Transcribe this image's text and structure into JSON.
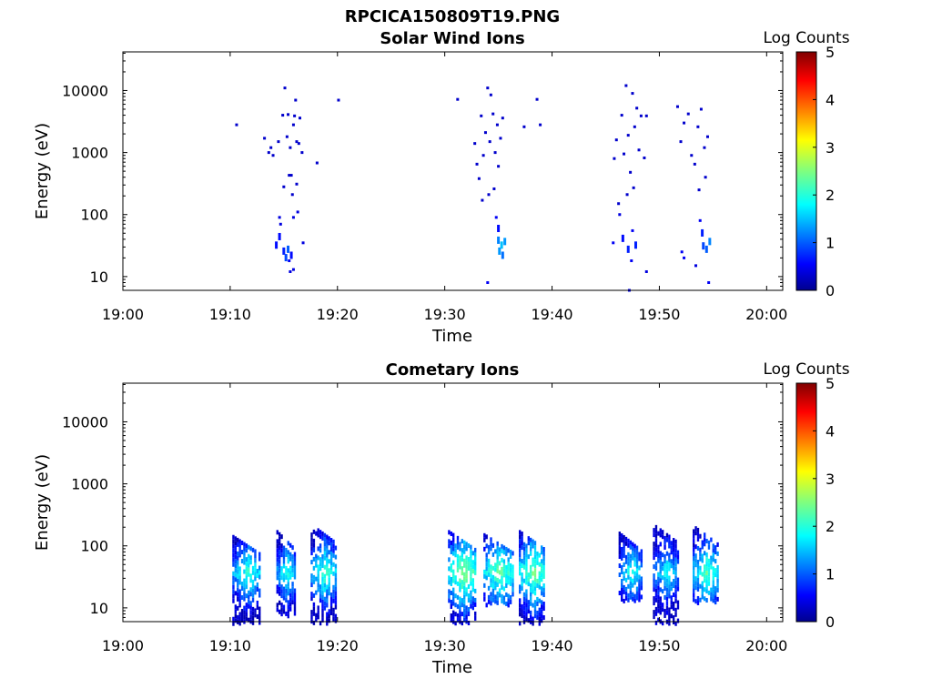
{
  "figure_title": "RPCICA150809T19.PNG",
  "chart_data": [
    {
      "type": "heatmap",
      "title": "Solar Wind Ions",
      "xlabel": "Time",
      "ylabel": "Energy (eV)",
      "x_ticks": [
        "19:00",
        "19:10",
        "19:20",
        "19:30",
        "19:40",
        "19:50",
        "20:00"
      ],
      "x_range_minutes": [
        0,
        61.5
      ],
      "y_scale": "log",
      "y_ticks": [
        "10",
        "100",
        "1000",
        "10000"
      ],
      "ylim": [
        6,
        42000
      ],
      "colorbar": {
        "label": "Log Counts",
        "ticks": [
          "0",
          "1",
          "2",
          "3",
          "4",
          "5"
        ],
        "range": [
          0,
          5
        ],
        "colormap": "jet"
      },
      "grid": false,
      "points": [
        {
          "t": 10.6,
          "e": 2800,
          "v": 0.3
        },
        {
          "t": 13.2,
          "e": 1700,
          "v": 0.3
        },
        {
          "t": 13.6,
          "e": 1000,
          "v": 0.3
        },
        {
          "t": 13.8,
          "e": 1200,
          "v": 0.3
        },
        {
          "t": 14.0,
          "e": 900,
          "v": 0.3
        },
        {
          "t": 14.5,
          "e": 1500,
          "v": 0.3
        },
        {
          "t": 14.9,
          "e": 4000,
          "v": 0.3
        },
        {
          "t": 15.1,
          "e": 11000,
          "v": 0.3
        },
        {
          "t": 15.3,
          "e": 1800,
          "v": 0.3
        },
        {
          "t": 15.4,
          "e": 4100,
          "v": 0.3
        },
        {
          "t": 15.6,
          "e": 1200,
          "v": 0.3
        },
        {
          "t": 15.7,
          "e": 430,
          "v": 0.3
        },
        {
          "t": 15.9,
          "e": 2800,
          "v": 0.3
        },
        {
          "t": 16.0,
          "e": 3900,
          "v": 0.3
        },
        {
          "t": 16.1,
          "e": 7000,
          "v": 0.3
        },
        {
          "t": 16.2,
          "e": 1500,
          "v": 0.3
        },
        {
          "t": 16.4,
          "e": 1400,
          "v": 0.3
        },
        {
          "t": 16.5,
          "e": 3600,
          "v": 0.3
        },
        {
          "t": 16.7,
          "e": 1000,
          "v": 0.3
        },
        {
          "t": 15.0,
          "e": 280,
          "v": 0.3
        },
        {
          "t": 15.5,
          "e": 430,
          "v": 0.3
        },
        {
          "t": 15.8,
          "e": 210,
          "v": 0.3
        },
        {
          "t": 16.2,
          "e": 310,
          "v": 0.3
        },
        {
          "t": 14.6,
          "e": 90,
          "v": 0.4
        },
        {
          "t": 14.7,
          "e": 70,
          "v": 0.4
        },
        {
          "t": 15.9,
          "e": 90,
          "v": 0.4
        },
        {
          "t": 16.3,
          "e": 110,
          "v": 0.4
        },
        {
          "t": 18.1,
          "e": 680,
          "v": 0.3
        },
        {
          "t": 20.1,
          "e": 7000,
          "v": 0.3
        },
        {
          "t": 14.3,
          "e": 35,
          "v": 0.6
        },
        {
          "t": 14.6,
          "e": 48,
          "v": 0.6
        },
        {
          "t": 15.0,
          "e": 28,
          "v": 0.7
        },
        {
          "t": 15.2,
          "e": 22,
          "v": 0.9
        },
        {
          "t": 15.4,
          "e": 30,
          "v": 1.0
        },
        {
          "t": 15.5,
          "e": 18,
          "v": 0.5
        },
        {
          "t": 15.7,
          "e": 24,
          "v": 0.6
        },
        {
          "t": 15.9,
          "e": 13,
          "v": 0.4
        },
        {
          "t": 15.6,
          "e": 12,
          "v": 0.4
        },
        {
          "t": 16.8,
          "e": 35,
          "v": 0.4
        },
        {
          "t": 31.2,
          "e": 7200,
          "v": 0.3
        },
        {
          "t": 32.8,
          "e": 1400,
          "v": 0.3
        },
        {
          "t": 33.0,
          "e": 650,
          "v": 0.3
        },
        {
          "t": 33.2,
          "e": 380,
          "v": 0.3
        },
        {
          "t": 33.4,
          "e": 3900,
          "v": 0.3
        },
        {
          "t": 33.6,
          "e": 900,
          "v": 0.3
        },
        {
          "t": 33.8,
          "e": 2100,
          "v": 0.3
        },
        {
          "t": 34.0,
          "e": 11000,
          "v": 0.3
        },
        {
          "t": 34.2,
          "e": 1500,
          "v": 0.3
        },
        {
          "t": 34.3,
          "e": 8500,
          "v": 0.3
        },
        {
          "t": 34.5,
          "e": 4200,
          "v": 0.3
        },
        {
          "t": 34.7,
          "e": 1000,
          "v": 0.3
        },
        {
          "t": 34.9,
          "e": 2800,
          "v": 0.3
        },
        {
          "t": 35.0,
          "e": 600,
          "v": 0.3
        },
        {
          "t": 35.2,
          "e": 1700,
          "v": 0.3
        },
        {
          "t": 35.4,
          "e": 3600,
          "v": 0.3
        },
        {
          "t": 33.5,
          "e": 170,
          "v": 0.3
        },
        {
          "t": 34.1,
          "e": 210,
          "v": 0.3
        },
        {
          "t": 34.6,
          "e": 260,
          "v": 0.3
        },
        {
          "t": 37.4,
          "e": 2600,
          "v": 0.3
        },
        {
          "t": 38.6,
          "e": 7200,
          "v": 0.3
        },
        {
          "t": 38.9,
          "e": 2800,
          "v": 0.3
        },
        {
          "t": 34.8,
          "e": 90,
          "v": 0.5
        },
        {
          "t": 35.0,
          "e": 65,
          "v": 0.6
        },
        {
          "t": 35.0,
          "e": 42,
          "v": 1.2
        },
        {
          "t": 35.3,
          "e": 35,
          "v": 1.5
        },
        {
          "t": 35.1,
          "e": 28,
          "v": 1.3
        },
        {
          "t": 35.4,
          "e": 24,
          "v": 1.1
        },
        {
          "t": 35.6,
          "e": 40,
          "v": 1.3
        },
        {
          "t": 34.0,
          "e": 8,
          "v": 0.5
        },
        {
          "t": 45.8,
          "e": 800,
          "v": 0.3
        },
        {
          "t": 46.0,
          "e": 1600,
          "v": 0.3
        },
        {
          "t": 46.2,
          "e": 150,
          "v": 0.3
        },
        {
          "t": 46.5,
          "e": 4000,
          "v": 0.3
        },
        {
          "t": 46.7,
          "e": 950,
          "v": 0.3
        },
        {
          "t": 46.9,
          "e": 12000,
          "v": 0.3
        },
        {
          "t": 47.1,
          "e": 1900,
          "v": 0.3
        },
        {
          "t": 47.3,
          "e": 480,
          "v": 0.3
        },
        {
          "t": 47.5,
          "e": 9000,
          "v": 0.3
        },
        {
          "t": 47.7,
          "e": 2600,
          "v": 0.3
        },
        {
          "t": 47.9,
          "e": 5200,
          "v": 0.3
        },
        {
          "t": 48.1,
          "e": 1100,
          "v": 0.3
        },
        {
          "t": 48.3,
          "e": 3900,
          "v": 0.3
        },
        {
          "t": 48.6,
          "e": 820,
          "v": 0.3
        },
        {
          "t": 48.8,
          "e": 3900,
          "v": 0.3
        },
        {
          "t": 46.3,
          "e": 100,
          "v": 0.4
        },
        {
          "t": 47.0,
          "e": 210,
          "v": 0.3
        },
        {
          "t": 47.6,
          "e": 270,
          "v": 0.3
        },
        {
          "t": 45.7,
          "e": 35,
          "v": 0.5
        },
        {
          "t": 46.6,
          "e": 45,
          "v": 0.6
        },
        {
          "t": 47.1,
          "e": 30,
          "v": 0.7
        },
        {
          "t": 47.5,
          "e": 55,
          "v": 0.5
        },
        {
          "t": 47.8,
          "e": 35,
          "v": 0.7
        },
        {
          "t": 47.4,
          "e": 18,
          "v": 0.5
        },
        {
          "t": 48.8,
          "e": 12,
          "v": 0.4
        },
        {
          "t": 47.2,
          "e": 6,
          "v": 0.5
        },
        {
          "t": 51.7,
          "e": 5500,
          "v": 0.3
        },
        {
          "t": 52.0,
          "e": 1500,
          "v": 0.3
        },
        {
          "t": 52.3,
          "e": 3000,
          "v": 0.3
        },
        {
          "t": 52.7,
          "e": 4200,
          "v": 0.3
        },
        {
          "t": 53.0,
          "e": 900,
          "v": 0.3
        },
        {
          "t": 53.3,
          "e": 650,
          "v": 0.3
        },
        {
          "t": 53.6,
          "e": 2600,
          "v": 0.3
        },
        {
          "t": 53.9,
          "e": 5000,
          "v": 0.3
        },
        {
          "t": 54.2,
          "e": 1200,
          "v": 0.3
        },
        {
          "t": 54.5,
          "e": 1800,
          "v": 0.3
        },
        {
          "t": 53.7,
          "e": 250,
          "v": 0.3
        },
        {
          "t": 54.3,
          "e": 400,
          "v": 0.3
        },
        {
          "t": 53.8,
          "e": 80,
          "v": 0.5
        },
        {
          "t": 54.0,
          "e": 55,
          "v": 0.7
        },
        {
          "t": 54.1,
          "e": 34,
          "v": 0.9
        },
        {
          "t": 54.4,
          "e": 30,
          "v": 1.0
        },
        {
          "t": 54.7,
          "e": 40,
          "v": 1.2
        },
        {
          "t": 52.1,
          "e": 25,
          "v": 0.5
        },
        {
          "t": 52.3,
          "e": 20,
          "v": 0.5
        },
        {
          "t": 53.4,
          "e": 15,
          "v": 0.4
        },
        {
          "t": 54.6,
          "e": 8,
          "v": 0.5
        }
      ]
    },
    {
      "type": "heatmap",
      "title": "Cometary Ions",
      "xlabel": "Time",
      "ylabel": "Energy (eV)",
      "x_ticks": [
        "19:00",
        "19:10",
        "19:20",
        "19:30",
        "19:40",
        "19:50",
        "20:00"
      ],
      "x_range_minutes": [
        0,
        61.5
      ],
      "y_scale": "log",
      "y_ticks": [
        "10",
        "100",
        "1000",
        "10000"
      ],
      "ylim": [
        6,
        42000
      ],
      "colorbar": {
        "label": "Log Counts",
        "ticks": [
          "0",
          "1",
          "2",
          "3",
          "4",
          "5"
        ],
        "range": [
          0,
          5
        ],
        "colormap": "jet"
      },
      "grid": false,
      "clusters": [
        {
          "t0": 10.2,
          "t1": 12.8,
          "emin": 6,
          "emax": 150,
          "peak": 2.1
        },
        {
          "t0": 14.3,
          "t1": 16.0,
          "emin": 8,
          "emax": 180,
          "peak": 2.0
        },
        {
          "t0": 17.5,
          "t1": 19.8,
          "emin": 6,
          "emax": 230,
          "peak": 2.2
        },
        {
          "t0": 30.3,
          "t1": 32.8,
          "emin": 6,
          "emax": 180,
          "peak": 2.6
        },
        {
          "t0": 33.6,
          "t1": 36.3,
          "emin": 12,
          "emax": 160,
          "peak": 2.4
        },
        {
          "t0": 36.9,
          "t1": 39.3,
          "emin": 6,
          "emax": 180,
          "peak": 2.5
        },
        {
          "t0": 46.2,
          "t1": 48.3,
          "emin": 14,
          "emax": 170,
          "peak": 2.0
        },
        {
          "t0": 49.4,
          "t1": 51.7,
          "emin": 6,
          "emax": 230,
          "peak": 1.9
        },
        {
          "t0": 53.1,
          "t1": 55.4,
          "emin": 13,
          "emax": 220,
          "peak": 2.3
        }
      ]
    }
  ]
}
